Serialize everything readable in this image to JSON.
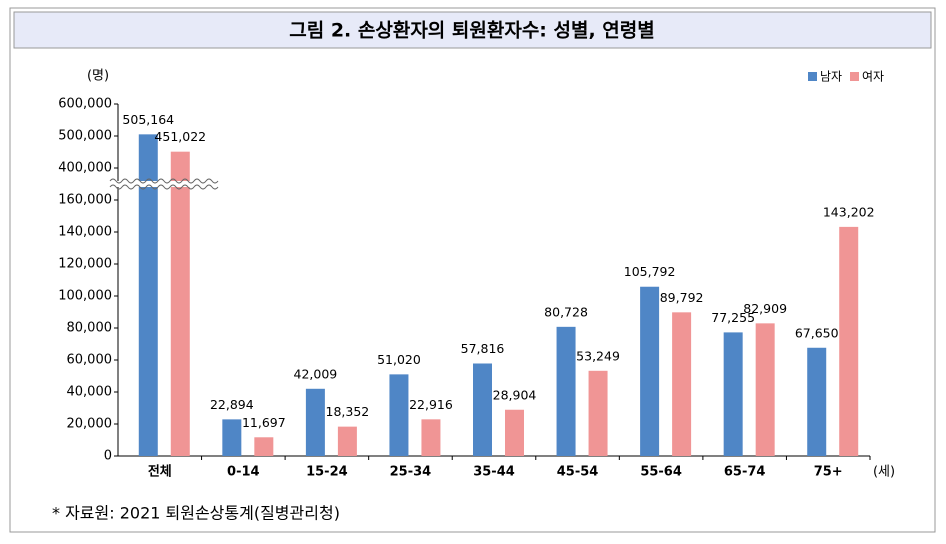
{
  "chart_data": {
    "type": "bar",
    "title": "그림 2. 손상환자의 퇴원환자수: 성별, 연령별",
    "y_unit": "(명)",
    "x_unit": "(세)",
    "source": "* 자료원: 2021 퇴원손상통계(질병관리청)",
    "categories": [
      "전체",
      "0-14",
      "15-24",
      "25-34",
      "35-44",
      "45-54",
      "55-64",
      "65-74",
      "75+"
    ],
    "series": [
      {
        "name": "남자",
        "color": "#4f86c6",
        "values": [
          505164,
          22894,
          42009,
          51020,
          57816,
          80728,
          105792,
          77255,
          67650
        ],
        "value_labels": [
          "505,164",
          "22,894",
          "42,009",
          "51,020",
          "57,816",
          "80,728",
          "105,792",
          "77,255",
          "67,650"
        ]
      },
      {
        "name": "여자",
        "color": "#f09595",
        "values": [
          451022,
          11697,
          18352,
          22916,
          28904,
          53249,
          89792,
          82909,
          143202
        ],
        "value_labels": [
          "451,022",
          "11,697",
          "18,352",
          "22,916",
          "28,904",
          "53,249",
          "89,792",
          "82,909",
          "143,202"
        ]
      }
    ],
    "ylim": [
      0,
      600000
    ],
    "yticks": [
      0,
      {
        "value": 20000,
        "label": "20,000"
      },
      {
        "value": 40000,
        "label": "40,000"
      },
      {
        "value": 60000,
        "label": "60,000"
      },
      {
        "value": 80000,
        "label": "80,000"
      },
      {
        "value": 100000,
        "label": "100,000"
      },
      {
        "value": 120000,
        "label": "120,000"
      },
      {
        "value": 140000,
        "label": "140,000"
      },
      {
        "value": 160000,
        "label": "160,000"
      },
      {
        "value": 400000,
        "label": "400,000"
      },
      {
        "value": 500000,
        "label": "500,000"
      },
      {
        "value": 600000,
        "label": "600,000"
      }
    ],
    "axis_break": true,
    "legend": "top-right",
    "grid": false
  }
}
